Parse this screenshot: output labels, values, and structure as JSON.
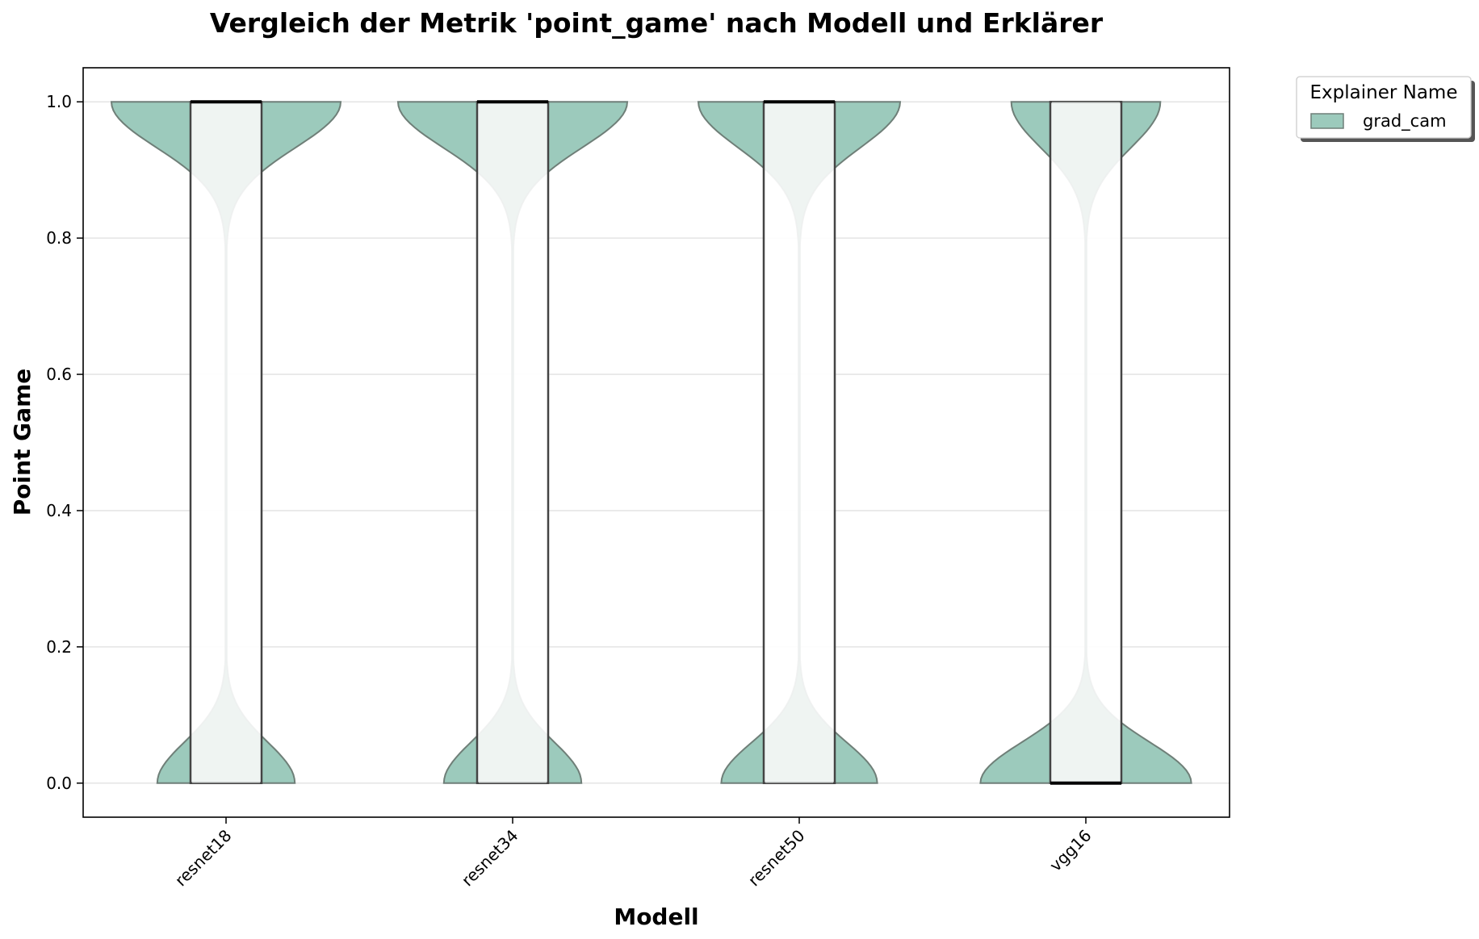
{
  "chart_data": {
    "type": "violin",
    "title": "Vergleich der Metrik 'point_game' nach Modell und Erklärer",
    "xlabel": "Modell",
    "ylabel": "Point Game",
    "categories": [
      "resnet18",
      "resnet34",
      "resnet50",
      "vgg16"
    ],
    "yticks": [
      "0.0",
      "0.2",
      "0.4",
      "0.6",
      "0.8",
      "1.0"
    ],
    "ylim": [
      -0.05,
      1.05
    ],
    "grid": "horizontal",
    "legend": {
      "title": "Explainer Name",
      "placement": "outside-top-right",
      "entries": [
        {
          "label": "grad_cam",
          "color": "#9ccabc"
        }
      ]
    },
    "series": [
      {
        "name": "grad_cam",
        "color": "#9ccabc",
        "violins": [
          {
            "category": "resnet18",
            "q1": 0.0,
            "median": 1.0,
            "q3": 1.0,
            "upper_density": 1.0,
            "lower_density": 0.6,
            "neck_value": 0.5
          },
          {
            "category": "resnet34",
            "q1": 0.0,
            "median": 1.0,
            "q3": 1.0,
            "upper_density": 1.0,
            "lower_density": 0.6,
            "neck_value": 0.5
          },
          {
            "category": "resnet50",
            "q1": 0.0,
            "median": 1.0,
            "q3": 1.0,
            "upper_density": 0.88,
            "lower_density": 0.68,
            "neck_value": 0.5
          },
          {
            "category": "vgg16",
            "q1": 0.0,
            "median": 0.0,
            "q3": 1.0,
            "upper_density": 0.65,
            "lower_density": 0.92,
            "neck_value": 0.5
          }
        ]
      }
    ]
  }
}
